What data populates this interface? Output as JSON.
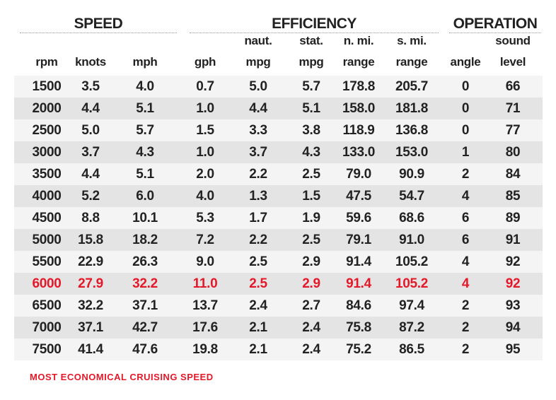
{
  "groups": {
    "speed": "SPEED",
    "efficiency": "EFFICIENCY",
    "operation": "OPERATION"
  },
  "headers": {
    "top": [
      "",
      "",
      "",
      "",
      "naut.",
      "stat.",
      "n. mi.",
      "s. mi.",
      "",
      "sound"
    ],
    "bottom": [
      "rpm",
      "knots",
      "mph",
      "gph",
      "mpg",
      "mpg",
      "range",
      "range",
      "angle",
      "level"
    ]
  },
  "rows": [
    [
      "1500",
      "3.5",
      "4.0",
      "0.7",
      "5.0",
      "5.7",
      "178.8",
      "205.7",
      "0",
      "66"
    ],
    [
      "2000",
      "4.4",
      "5.1",
      "1.0",
      "4.4",
      "5.1",
      "158.0",
      "181.8",
      "0",
      "71"
    ],
    [
      "2500",
      "5.0",
      "5.7",
      "1.5",
      "3.3",
      "3.8",
      "118.9",
      "136.8",
      "0",
      "77"
    ],
    [
      "3000",
      "3.7",
      "4.3",
      "1.0",
      "3.7",
      "4.3",
      "133.0",
      "153.0",
      "1",
      "80"
    ],
    [
      "3500",
      "4.4",
      "5.1",
      "2.0",
      "2.2",
      "2.5",
      "79.0",
      "90.9",
      "2",
      "84"
    ],
    [
      "4000",
      "5.2",
      "6.0",
      "4.0",
      "1.3",
      "1.5",
      "47.5",
      "54.7",
      "4",
      "85"
    ],
    [
      "4500",
      "8.8",
      "10.1",
      "5.3",
      "1.7",
      "1.9",
      "59.6",
      "68.6",
      "6",
      "89"
    ],
    [
      "5000",
      "15.8",
      "18.2",
      "7.2",
      "2.2",
      "2.5",
      "79.1",
      "91.0",
      "6",
      "91"
    ],
    [
      "5500",
      "22.9",
      "26.3",
      "9.0",
      "2.5",
      "2.9",
      "91.4",
      "105.2",
      "4",
      "92"
    ],
    [
      "6000",
      "27.9",
      "32.2",
      "11.0",
      "2.5",
      "2.9",
      "91.4",
      "105.2",
      "4",
      "92"
    ],
    [
      "6500",
      "32.2",
      "37.1",
      "13.7",
      "2.4",
      "2.7",
      "84.6",
      "97.4",
      "2",
      "93"
    ],
    [
      "7000",
      "37.1",
      "42.7",
      "17.6",
      "2.1",
      "2.4",
      "75.8",
      "87.2",
      "2",
      "94"
    ],
    [
      "7500",
      "41.4",
      "47.6",
      "19.8",
      "2.1",
      "2.4",
      "75.2",
      "86.5",
      "2",
      "95"
    ]
  ],
  "highlight_row": 9,
  "highlight_color": "#e3192a",
  "note": "MOST ECONOMICAL CRUISING SPEED"
}
